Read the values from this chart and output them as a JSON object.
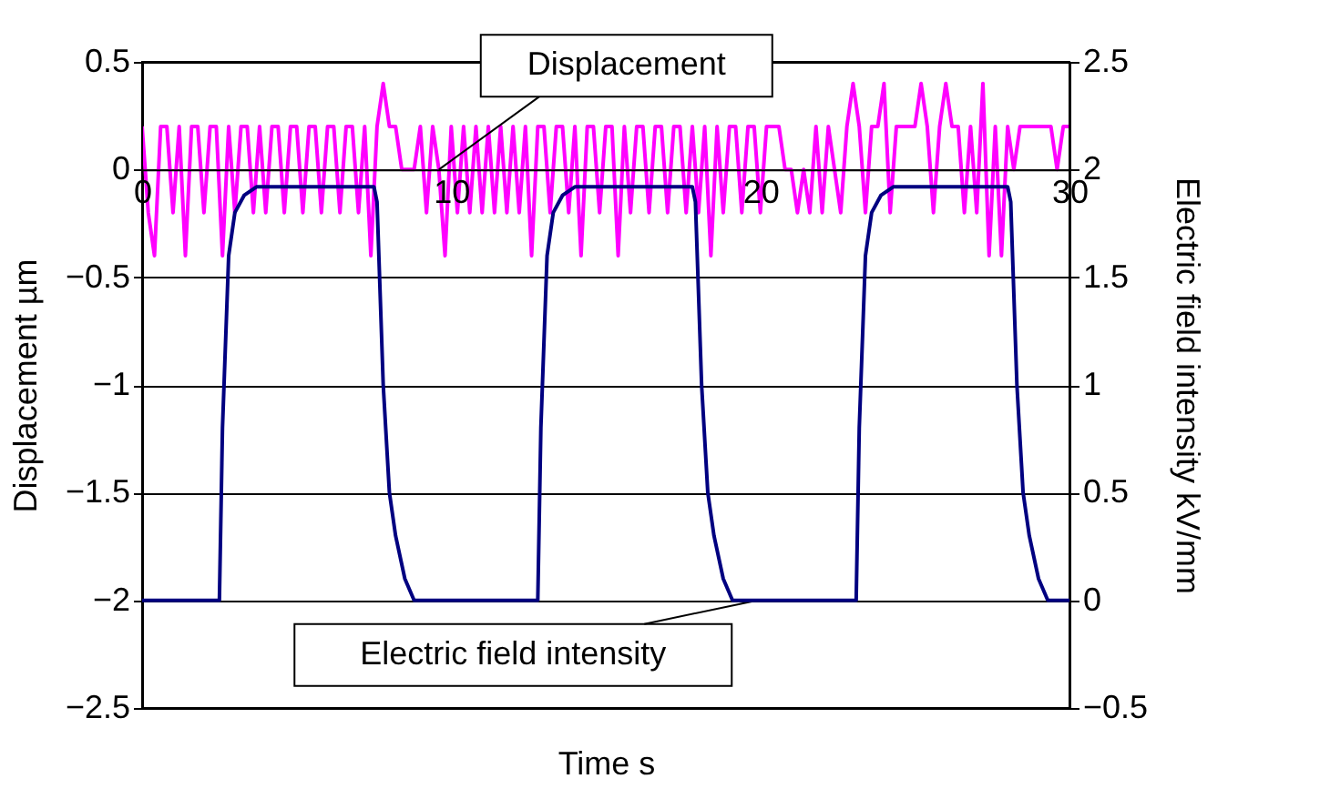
{
  "chart_data": {
    "type": "line",
    "xlabel": "Time s",
    "ylabel": "Displacement µm",
    "y2label": "Electric field intensity kV/mm",
    "xlim": [
      0,
      30
    ],
    "xticks": [
      0,
      10,
      20,
      30
    ],
    "ylim": [
      -2.5,
      0.5
    ],
    "yticks": [
      {
        "value": -2.5,
        "label": "−2.5"
      },
      {
        "value": -2,
        "label": "−2"
      },
      {
        "value": -1.5,
        "label": "−1.5"
      },
      {
        "value": -1,
        "label": "−1"
      },
      {
        "value": -0.5,
        "label": "−0.5"
      },
      0,
      0.5
    ],
    "y2lim": [
      -0.5,
      2.5
    ],
    "y2ticks": [
      {
        "value": -0.5,
        "label": "−0.5"
      },
      0,
      0.5,
      1,
      1.5,
      2,
      2.5
    ],
    "grid": "y",
    "legend": false,
    "marker": "none",
    "line_style": "solid",
    "annotations": [
      {
        "text": "Displacement",
        "x": 9.6,
        "y": 0
      },
      {
        "text": "Electric field intensity",
        "x": 19.9,
        "y": -2
      }
    ],
    "series": [
      {
        "color": "#ff00ff",
        "x": [
          0,
          0.2,
          0.4,
          0.6,
          0.8,
          1,
          1.2,
          1.4,
          1.6,
          1.8,
          2,
          2.2,
          2.4,
          2.6,
          2.8,
          3,
          3.2,
          3.4,
          3.6,
          3.8,
          4,
          4.2,
          4.4,
          4.6,
          4.8,
          5,
          5.2,
          5.4,
          5.6,
          5.8,
          6,
          6.2,
          6.4,
          6.6,
          6.8,
          7,
          7.2,
          7.4,
          7.6,
          7.8,
          8,
          8.2,
          8.4,
          8.6,
          8.8,
          9,
          9.2,
          9.4,
          9.6,
          9.8,
          10,
          10.2,
          10.4,
          10.6,
          10.8,
          11,
          11.2,
          11.4,
          11.6,
          11.8,
          12,
          12.2,
          12.4,
          12.6,
          12.8,
          13,
          13.2,
          13.4,
          13.6,
          13.8,
          14,
          14.2,
          14.4,
          14.6,
          14.8,
          15,
          15.2,
          15.4,
          15.6,
          15.8,
          16,
          16.2,
          16.4,
          16.6,
          16.8,
          17,
          17.2,
          17.4,
          17.6,
          17.8,
          18,
          18.2,
          18.4,
          18.6,
          18.8,
          19,
          19.2,
          19.4,
          19.6,
          19.8,
          20,
          20.2,
          20.4,
          20.6,
          20.8,
          21,
          21.2,
          21.4,
          21.6,
          21.8,
          22,
          22.2,
          22.4,
          22.6,
          22.8,
          23,
          23.2,
          23.4,
          23.6,
          23.8,
          24,
          24.2,
          24.4,
          24.6,
          24.8,
          25,
          25.2,
          25.4,
          25.6,
          25.8,
          26,
          26.2,
          26.4,
          26.6,
          26.8,
          27,
          27.2,
          27.4,
          27.6,
          27.8,
          28,
          28.2,
          28.4,
          28.6,
          28.8,
          29,
          29.2,
          29.4,
          29.6,
          29.8,
          30
        ],
        "values": [
          0.2,
          -0.2,
          -0.4,
          0.2,
          0.2,
          -0.2,
          0.2,
          -0.4,
          0.2,
          0.2,
          -0.2,
          0.2,
          0.2,
          -0.4,
          0.2,
          -0.2,
          0.2,
          0.2,
          -0.2,
          0.2,
          -0.2,
          0.2,
          0.2,
          -0.2,
          0.2,
          0.2,
          -0.2,
          0.2,
          0.2,
          -0.2,
          0.2,
          0.2,
          -0.2,
          0.2,
          0.2,
          -0.2,
          0.2,
          -0.4,
          0.2,
          0.4,
          0.2,
          0.2,
          0,
          0,
          0,
          0.2,
          -0.2,
          0.2,
          0,
          -0.4,
          0.2,
          -0.2,
          0.2,
          -0.2,
          0.2,
          -0.2,
          0.2,
          -0.2,
          0.2,
          -0.2,
          0.2,
          -0.2,
          0.2,
          -0.4,
          0.2,
          0.2,
          -0.2,
          0.2,
          0.2,
          -0.2,
          0.2,
          -0.4,
          0.2,
          0.2,
          -0.2,
          0.2,
          0.2,
          -0.4,
          0.2,
          -0.2,
          0.2,
          0.2,
          -0.2,
          0.2,
          0.2,
          -0.2,
          0.2,
          0.2,
          -0.2,
          0.2,
          -0.2,
          0.2,
          -0.4,
          0.2,
          -0.2,
          0.2,
          0.2,
          -0.2,
          0.2,
          0.2,
          -0.2,
          0.2,
          0.2,
          0.2,
          0,
          0,
          -0.2,
          0,
          -0.2,
          0.2,
          -0.2,
          0.2,
          0,
          -0.2,
          0.2,
          0.4,
          0.2,
          -0.2,
          0.2,
          0.2,
          0.4,
          -0.2,
          0.2,
          0.2,
          0.2,
          0.2,
          0.4,
          0.2,
          -0.2,
          0.2,
          0.4,
          0.2,
          0.2,
          -0.2,
          0.2,
          -0.2,
          0.4,
          -0.4,
          0.2,
          -0.4,
          0.2,
          0,
          0.2,
          0.2,
          0.2,
          0.2,
          0.2,
          0.2,
          0,
          0.2,
          0.2
        ]
      },
      {
        "color": "#000080",
        "axis": "y2",
        "x": [
          0,
          2.5,
          2.6,
          2.8,
          3.0,
          3.3,
          3.7,
          7.5,
          7.6,
          7.8,
          8.0,
          8.2,
          8.5,
          8.8,
          12.8,
          12.9,
          13.1,
          13.3,
          13.6,
          14.0,
          17.8,
          17.9,
          18.1,
          18.3,
          18.5,
          18.8,
          19.1,
          23.1,
          23.2,
          23.4,
          23.6,
          23.9,
          24.3,
          28.0,
          28.1,
          28.3,
          28.5,
          28.7,
          29.0,
          29.3,
          30
        ],
        "values": [
          0,
          0,
          0.8,
          1.6,
          1.8,
          1.88,
          1.92,
          1.92,
          1.85,
          1.0,
          0.5,
          0.3,
          0.1,
          0,
          0,
          0.8,
          1.6,
          1.8,
          1.88,
          1.92,
          1.92,
          1.85,
          1.0,
          0.5,
          0.3,
          0.1,
          0,
          0,
          0.8,
          1.6,
          1.8,
          1.88,
          1.92,
          1.92,
          1.85,
          1.0,
          0.5,
          0.3,
          0.1,
          0,
          0
        ]
      }
    ]
  }
}
